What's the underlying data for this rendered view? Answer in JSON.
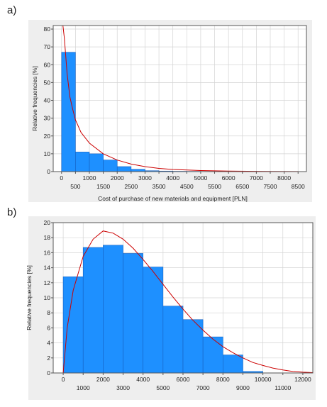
{
  "chart_data": [
    {
      "type": "bar",
      "panel_label": "a)",
      "xlabel": "Cost of purchase of new materials and equipment [PLN]",
      "ylabel": "Relative frequencies [%]",
      "xlim": [
        -300,
        8800
      ],
      "ylim": [
        0,
        82
      ],
      "xticks_upper": [
        0,
        1000,
        2000,
        3000,
        4000,
        5000,
        6000,
        7000,
        8000
      ],
      "xticks_lower": [
        500,
        1500,
        2500,
        3500,
        4500,
        5500,
        6500,
        7500,
        8500
      ],
      "yticks": [
        0,
        10,
        20,
        30,
        40,
        50,
        60,
        70,
        80
      ],
      "bin_width": 500,
      "bins": [
        {
          "x0": 0,
          "value": 67
        },
        {
          "x0": 500,
          "value": 11
        },
        {
          "x0": 1000,
          "value": 10
        },
        {
          "x0": 1500,
          "value": 6.5
        },
        {
          "x0": 2000,
          "value": 2.8
        },
        {
          "x0": 2500,
          "value": 1.3
        },
        {
          "x0": 3000,
          "value": 0.5
        },
        {
          "x0": 3500,
          "value": 0.3
        },
        {
          "x0": 4000,
          "value": 0.2
        },
        {
          "x0": 4500,
          "value": 0.15
        },
        {
          "x0": 5000,
          "value": 0.1
        },
        {
          "x0": 5500,
          "value": 0.1
        },
        {
          "x0": 6000,
          "value": 0.05
        }
      ],
      "curve": [
        [
          50,
          82
        ],
        [
          100,
          75
        ],
        [
          200,
          55
        ],
        [
          300,
          42
        ],
        [
          400,
          35
        ],
        [
          500,
          29
        ],
        [
          700,
          22
        ],
        [
          1000,
          16
        ],
        [
          1500,
          10
        ],
        [
          2000,
          6.5
        ],
        [
          2500,
          4.2
        ],
        [
          3000,
          2.8
        ],
        [
          3500,
          1.8
        ],
        [
          4000,
          1.2
        ],
        [
          5000,
          0.6
        ],
        [
          6000,
          0.3
        ],
        [
          7000,
          0.15
        ],
        [
          8500,
          0.05
        ]
      ],
      "grid": true,
      "colors": {
        "bar": "#1e90ff",
        "bar_edge": "#1560c0",
        "curve": "#cc0000",
        "background": "#eeeeee",
        "grid": "#d4d4d4"
      }
    },
    {
      "type": "bar",
      "panel_label": "b)",
      "xlabel": "",
      "ylabel": "Relative frequencies [%]",
      "xlim": [
        -500,
        12500
      ],
      "ylim": [
        0,
        20
      ],
      "xticks_upper": [
        0,
        2000,
        4000,
        6000,
        8000,
        10000,
        12000
      ],
      "xticks_lower": [
        1000,
        3000,
        5000,
        7000,
        9000,
        11000
      ],
      "yticks": [
        0,
        2,
        4,
        6,
        8,
        10,
        12,
        14,
        16,
        18,
        20
      ],
      "bin_width": 1000,
      "bins": [
        {
          "x0": 0,
          "value": 12.8
        },
        {
          "x0": 1000,
          "value": 16.7
        },
        {
          "x0": 2000,
          "value": 17.0
        },
        {
          "x0": 3000,
          "value": 15.9
        },
        {
          "x0": 4000,
          "value": 14.1
        },
        {
          "x0": 5000,
          "value": 8.9
        },
        {
          "x0": 6000,
          "value": 7.1
        },
        {
          "x0": 7000,
          "value": 4.8
        },
        {
          "x0": 8000,
          "value": 2.4
        },
        {
          "x0": 9000,
          "value": 0.2
        }
      ],
      "curve": [
        [
          0,
          0
        ],
        [
          200,
          6
        ],
        [
          500,
          11
        ],
        [
          1000,
          15.5
        ],
        [
          1500,
          17.8
        ],
        [
          2000,
          18.9
        ],
        [
          2500,
          18.6
        ],
        [
          3000,
          17.8
        ],
        [
          3500,
          16.6
        ],
        [
          4000,
          15.1
        ],
        [
          4500,
          13.5
        ],
        [
          5000,
          11.8
        ],
        [
          5500,
          10.1
        ],
        [
          6000,
          8.5
        ],
        [
          6500,
          7.0
        ],
        [
          7000,
          5.7
        ],
        [
          7500,
          4.5
        ],
        [
          8000,
          3.5
        ],
        [
          8500,
          2.7
        ],
        [
          9000,
          2.0
        ],
        [
          9500,
          1.4
        ],
        [
          10000,
          1.0
        ],
        [
          10500,
          0.65
        ],
        [
          11000,
          0.4
        ],
        [
          11500,
          0.2
        ],
        [
          12000,
          0.1
        ],
        [
          12500,
          0.05
        ]
      ],
      "grid": true,
      "colors": {
        "bar": "#1e90ff",
        "bar_edge": "#1560c0",
        "curve": "#cc0000",
        "background": "#eeeeee",
        "grid": "#d4d4d4"
      }
    }
  ]
}
